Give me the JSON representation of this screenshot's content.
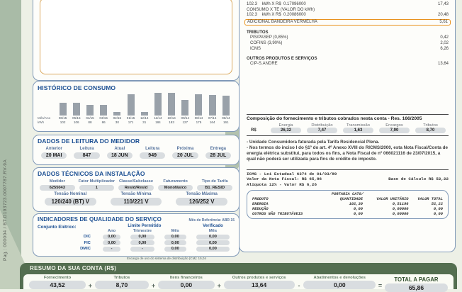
{
  "page": {
    "side_text": "Pag.: 000004 / BT.D193723.0007787.RV-9A",
    "colors": {
      "header_blue": "#1a4e92",
      "border_blue": "#8099b8",
      "highlight_orange": "#e8921e",
      "summary_green": "#546e50",
      "pill_gray": "#d9dde0",
      "bar_gray": "#99a1a9"
    }
  },
  "charges": {
    "lines": [
      {
        "desc": "102.3    kWh X R$  0.17096000",
        "value": "17,43",
        "highlight": false
      },
      {
        "desc": "CONSUMO X TE (VALOR DO kWh)",
        "value": "",
        "highlight": false
      },
      {
        "desc": "102.3    kWh X R$  0.20086000",
        "value": "20,48",
        "highlight": false
      },
      {
        "desc": "ADICIONAL BANDEIRA VERMELHA",
        "value": "5,61",
        "highlight": true
      }
    ],
    "tributos_title": "TRIBUTOS",
    "tributos": [
      {
        "desc": "PIS/PASEP (0,85%)",
        "value": "0,42"
      },
      {
        "desc": "COFINS (3,90%)",
        "value": "2,02"
      },
      {
        "desc": "ICMS",
        "value": "6,26"
      }
    ],
    "outros_title": "OUTROS PRODUTOS E SERVIÇOS",
    "outros": [
      {
        "desc": "CIP-S.ANDRE",
        "value": "13,64"
      }
    ]
  },
  "composicao": {
    "title": "Composição do fornecimento e tributos cobrados nesta conta - Res. 166/2005",
    "row_label": "R$",
    "headers": [
      "Energia",
      "Distribuição",
      "Transmissão",
      "Encargos",
      "Tributos"
    ],
    "values": [
      "26,32",
      "7,47",
      "1,63",
      "7,90",
      "8,70"
    ]
  },
  "notes": [
    "- Unidade Consumidora faturada pela Tarifa Residencial Plena.",
    "- Nos termos do inciso I do §1º do art. 4º Anexo XVIII do RICMS/2000, esta Nota Fiscal/Conta de energia elétrica substitui, para todos os fins, a Nota Fiscal de nº 066021116 de 23/07/2015, a qual não poderá ser utilizada para fins de crédito de imposto."
  ],
  "icms_note": {
    "lines": [
      {
        "left": "ICMS - Lei Estadual 6374 de 01/03/89",
        "right": ""
      },
      {
        "left": "Valor da Nota Fiscal: R$ 65,86",
        "right": "Base de Cálculo R$ 52,22"
      },
      {
        "left": "Alíquota 12% - Valor R$ 6,26",
        "right": ""
      }
    ]
  },
  "portaria": {
    "title": "PORTARIA CAT9/",
    "headers": [
      "PRODUTO",
      "QUANTIDADE",
      "VALOR UNITÁRIO",
      "VALOR TOTAL"
    ],
    "rows": [
      [
        "ENERGIA",
        "102,30",
        "0,51196",
        "52,22"
      ],
      [
        "REDUÇÃO",
        "0,00",
        "0,00000",
        "0,00"
      ],
      [
        "OUTROS NÃO TRIBUTÁVEIS",
        "0,00",
        "0,00000",
        "0,00"
      ]
    ]
  },
  "chart_data": {
    "type": "bar",
    "title": "HISTÓRICO DE CONSUMO",
    "row_labels": [
      "Mês/Ano",
      "kWh"
    ],
    "categories": [
      "06/15",
      "05/15",
      "04/15",
      "03/15",
      "02/15",
      "01/15",
      "12/14",
      "11/14",
      "10/14",
      "09/14",
      "08/14",
      "07/14",
      "06/14"
    ],
    "values": [
      102,
      106,
      88,
      86,
      30,
      171,
      31,
      184,
      183,
      127,
      175,
      164,
      161
    ],
    "xlabel": "Mês/Ano",
    "ylabel": "kWh",
    "ylim": [
      0,
      184
    ],
    "legend": "none",
    "grid": false
  },
  "leitura": {
    "title": "DADOS DE LEITURA DO MEDIDOR",
    "headers": [
      "Anterior",
      "Leitura",
      "Atual",
      "Leitura",
      "Próxima",
      "Entrega"
    ],
    "values": [
      "20 MAI",
      "847",
      "18 JUN",
      "949",
      "20 JUL",
      "28 JUL"
    ]
  },
  "tecnicos": {
    "title": "DADOS TÉCNICOS DA INSTALAÇÃO",
    "row1_headers": [
      "Medidor",
      "Fator Multiplicador",
      "Classe/Subclasse",
      "Faturamento",
      "Tipo de Tarifa"
    ],
    "row1_values": [
      "6255043",
      "1",
      "Resid/Resid",
      "Monofásico",
      "B1_RESID"
    ],
    "row2_headers": [
      "Tensão Nominal",
      "Tensão Mínima",
      "Tensão Máxima"
    ],
    "row2_values": [
      "120/240 (BT) V",
      "110/221 V",
      "126/252 V"
    ]
  },
  "qualidade": {
    "title": "INDICADORES DE QUALIDADE DO SERVIÇO",
    "ref": "Mês de Referência: ABR 15",
    "left_label": "Conjunto Elétrico:",
    "group1": "Limite Permitido",
    "group2": "Verificado",
    "col_headers": [
      "Ano",
      "Trimestre",
      "Mês",
      "Mês"
    ],
    "rows": [
      {
        "label": "DIC",
        "values": [
          "0,00",
          "0,00",
          "0,00",
          "0,00"
        ]
      },
      {
        "label": "FIC",
        "values": [
          "0,00",
          "0,00",
          "0,00",
          "0,00"
        ]
      },
      {
        "label": "DMIC",
        "values": [
          "-",
          "-",
          "0,00",
          "0,00"
        ]
      }
    ]
  },
  "encargo_note": "Encargo de uso do sistema de distribuição (CM): 15,04",
  "resumo": {
    "title": "RESUMO DA SUA CONTA (R$)",
    "items": [
      {
        "label": "Fornecimento",
        "value": "43,52",
        "op": "+"
      },
      {
        "label": "Tributos",
        "value": "8,70",
        "op": "+"
      },
      {
        "label": "Itens financeiros",
        "value": "0,00",
        "op": "+"
      },
      {
        "label": "Outros produtos e serviços",
        "value": "13,64",
        "op": "-"
      },
      {
        "label": "Abatimentos e devoluções",
        "value": "0,00",
        "op": "="
      },
      {
        "label": "TOTAL A PAGAR",
        "value": "65,86",
        "op": ""
      }
    ]
  }
}
